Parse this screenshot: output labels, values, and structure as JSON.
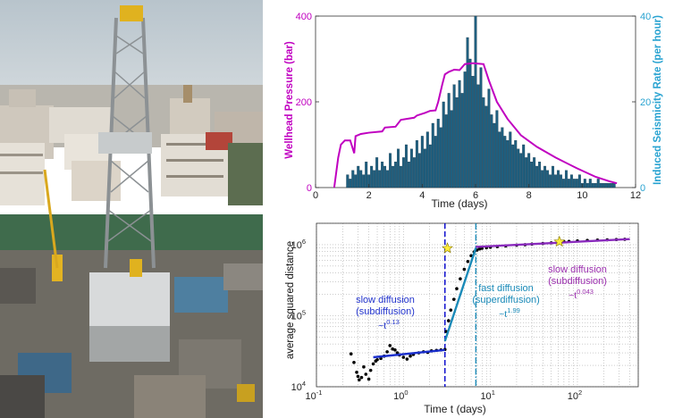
{
  "photo": {
    "subject": "drilling-rig-in-city",
    "colors": {
      "sky": "#c9d3da",
      "rig": "#8a8f92",
      "buildings": "#d8cfc4",
      "ground": "#6b6a62"
    }
  },
  "chart_data": [
    {
      "type": "bar",
      "subtype": "bar-with-line-overlay",
      "title": "",
      "xlabel": "Time (days)",
      "ylabel": "Wellhead Pressure (bar)",
      "ylabel_right": "Induced Seismicity Rate (per hour)",
      "xlim": [
        0,
        12
      ],
      "ylim": [
        0,
        400
      ],
      "ylim_right": [
        0,
        40
      ],
      "x_ticks": [
        "0",
        "2",
        "4",
        "6",
        "8",
        "10",
        "12"
      ],
      "y_ticks": [
        "0",
        "200",
        "400"
      ],
      "y_ticks_right": [
        "0",
        "20",
        "40"
      ],
      "colors": {
        "pressure": "#c000c0",
        "seismicity": "#1f5f7f",
        "right_axis": "#29a3d1"
      },
      "series": [
        {
          "name": "Wellhead Pressure",
          "kind": "line",
          "axis": "left",
          "points": [
            [
              0.7,
              0
            ],
            [
              0.85,
              70
            ],
            [
              0.95,
              100
            ],
            [
              1.1,
              110
            ],
            [
              1.3,
              110
            ],
            [
              1.45,
              80
            ],
            [
              1.5,
              120
            ],
            [
              1.7,
              125
            ],
            [
              2.0,
              128
            ],
            [
              2.5,
              131
            ],
            [
              2.6,
              140
            ],
            [
              3.0,
              142
            ],
            [
              3.2,
              158
            ],
            [
              3.7,
              163
            ],
            [
              3.8,
              168
            ],
            [
              4.1,
              174
            ],
            [
              4.3,
              179
            ],
            [
              4.5,
              180
            ],
            [
              4.6,
              200
            ],
            [
              4.75,
              240
            ],
            [
              4.85,
              264
            ],
            [
              5.0,
              270
            ],
            [
              5.2,
              275
            ],
            [
              5.4,
              274
            ],
            [
              5.6,
              288
            ],
            [
              5.9,
              290
            ],
            [
              6.3,
              288
            ],
            [
              6.5,
              250
            ],
            [
              6.8,
              200
            ],
            [
              7.2,
              160
            ],
            [
              7.7,
              122
            ],
            [
              8.3,
              95
            ],
            [
              9.0,
              70
            ],
            [
              9.8,
              45
            ],
            [
              10.5,
              25
            ],
            [
              11.0,
              15
            ],
            [
              11.3,
              10
            ]
          ]
        },
        {
          "name": "Induced Seismicity Rate",
          "kind": "bar",
          "axis": "right",
          "bin_width": 0.1,
          "x": [
            1.2,
            1.3,
            1.4,
            1.5,
            1.6,
            1.7,
            1.8,
            1.9,
            2.0,
            2.1,
            2.2,
            2.3,
            2.4,
            2.5,
            2.6,
            2.7,
            2.8,
            2.9,
            3.0,
            3.1,
            3.2,
            3.3,
            3.4,
            3.5,
            3.6,
            3.7,
            3.8,
            3.9,
            4.0,
            4.1,
            4.2,
            4.3,
            4.4,
            4.5,
            4.6,
            4.7,
            4.8,
            4.9,
            5.0,
            5.1,
            5.2,
            5.3,
            5.4,
            5.5,
            5.6,
            5.7,
            5.8,
            5.9,
            6.0,
            6.1,
            6.2,
            6.3,
            6.4,
            6.5,
            6.6,
            6.7,
            6.8,
            6.9,
            7.0,
            7.1,
            7.2,
            7.3,
            7.4,
            7.5,
            7.6,
            7.7,
            7.8,
            7.9,
            8.0,
            8.1,
            8.2,
            8.3,
            8.4,
            8.5,
            8.6,
            8.7,
            8.8,
            8.9,
            9.0,
            9.1,
            9.2,
            9.3,
            9.4,
            9.5,
            9.6,
            9.7,
            9.8,
            9.9,
            10.0,
            10.1,
            10.2,
            10.3,
            10.4,
            10.5,
            10.6,
            10.7,
            10.8,
            10.9,
            11.0,
            11.1,
            11.2
          ],
          "values": [
            3,
            2,
            4,
            3,
            5,
            4,
            3,
            6,
            3,
            5,
            4,
            7,
            4,
            6,
            5,
            4,
            8,
            5,
            6,
            9,
            5,
            7,
            10,
            6,
            9,
            7,
            11,
            8,
            12,
            9,
            13,
            10,
            15,
            12,
            16,
            14,
            20,
            17,
            22,
            18,
            24,
            21,
            25,
            22,
            27,
            35,
            30,
            26,
            40,
            24,
            28,
            21,
            19,
            23,
            17,
            15,
            18,
            13,
            14,
            12,
            11,
            13,
            10,
            11,
            9,
            8,
            10,
            7,
            8,
            6,
            7,
            5,
            6,
            4,
            5,
            4,
            3,
            5,
            3,
            4,
            3,
            2,
            4,
            2,
            3,
            2,
            2,
            3,
            1,
            2,
            1,
            2,
            1,
            1,
            2,
            1,
            1,
            1,
            1,
            1,
            1
          ]
        }
      ]
    },
    {
      "type": "scatter",
      "subtype": "log-log-with-fits",
      "title": "",
      "xlabel": "Time t (days)",
      "ylabel": "average squared distance",
      "x_scale": "log",
      "y_scale": "log",
      "xlim": [
        0.1,
        500
      ],
      "ylim": [
        10000,
        2000000
      ],
      "x_ticks": [
        "10^-1",
        "10^0",
        "10^1",
        "10^2"
      ],
      "y_ticks": [
        "10^4",
        "10^5",
        "10^6"
      ],
      "grid": true,
      "vlines": [
        {
          "x": 3.0,
          "style": "dashed",
          "color": "#0000cc"
        },
        {
          "x": 6.8,
          "style": "dash-dot",
          "color": "#1a8ab8"
        }
      ],
      "markers": [
        {
          "x": 3.2,
          "y": 890000,
          "symbol": "star",
          "color": "#ffeb3b"
        },
        {
          "x": 62,
          "y": 1100000,
          "symbol": "star",
          "color": "#ffeb3b"
        }
      ],
      "annotations": [
        {
          "text": "slow diffusion (subdiffusion)",
          "exponent": "0.13",
          "color": "#2233cc"
        },
        {
          "text": "fast diffusion (superdiffusion)",
          "exponent": "1.99",
          "color": "#1a8ab8"
        },
        {
          "text": "slow diffusion (subdiffusion)",
          "exponent": "0.043",
          "color": "#9b2fae"
        }
      ],
      "series": [
        {
          "kind": "scatter",
          "color": "#000000",
          "x": [
            0.25,
            0.27,
            0.29,
            0.3,
            0.31,
            0.33,
            0.35,
            0.37,
            0.4,
            0.42,
            0.45,
            0.48,
            0.5,
            0.55,
            0.6,
            0.65,
            0.7,
            0.75,
            0.8,
            0.85,
            0.9,
            1.0,
            1.1,
            1.2,
            1.3,
            1.5,
            1.7,
            1.9,
            2.1,
            2.4,
            2.7,
            3.0
          ],
          "y": [
            29000,
            22000,
            16000,
            14000,
            12500,
            13500,
            19000,
            15000,
            12800,
            17000,
            21000,
            23000,
            24000,
            25000,
            27000,
            31000,
            38000,
            34000,
            33000,
            30000,
            28000,
            26000,
            24500,
            27000,
            28500,
            30000,
            31000,
            30500,
            32000,
            32500,
            33000,
            33500
          ]
        },
        {
          "kind": "scatter",
          "color": "#000000",
          "x": [
            3.1,
            3.3,
            3.5,
            3.8,
            4.1,
            4.5,
            5.0,
            5.5,
            6.0,
            6.5,
            7.0,
            7.5,
            8,
            9,
            10,
            12,
            15,
            20,
            25,
            30,
            40,
            50,
            60,
            70,
            80,
            100,
            130,
            170,
            220,
            280,
            350
          ],
          "y": [
            60000,
            85000,
            120000,
            170000,
            240000,
            330000,
            450000,
            580000,
            700000,
            790000,
            840000,
            870000,
            890000,
            905000,
            920000,
            940000,
            960000,
            985000,
            1000000,
            1020000,
            1040000,
            1060000,
            1080000,
            1100000,
            1110000,
            1130000,
            1150000,
            1160000,
            1170000,
            1180000,
            1190000
          ]
        },
        {
          "kind": "fit-line",
          "color": "#1a2fcc",
          "label": "slow diffusion (subdiffusion)",
          "x": [
            0.45,
            3.0
          ],
          "y": [
            26000,
            33000
          ]
        },
        {
          "kind": "fit-line",
          "color": "#1a8ab8",
          "label": "fast diffusion (superdiffusion)",
          "x": [
            3.0,
            6.8
          ],
          "y": [
            44000,
            900000
          ]
        },
        {
          "kind": "fit-line",
          "color": "#8a2bbd",
          "label": "slow diffusion (subdiffusion)",
          "x": [
            6.8,
            400
          ],
          "y": [
            930000,
            1200000
          ]
        }
      ]
    }
  ]
}
